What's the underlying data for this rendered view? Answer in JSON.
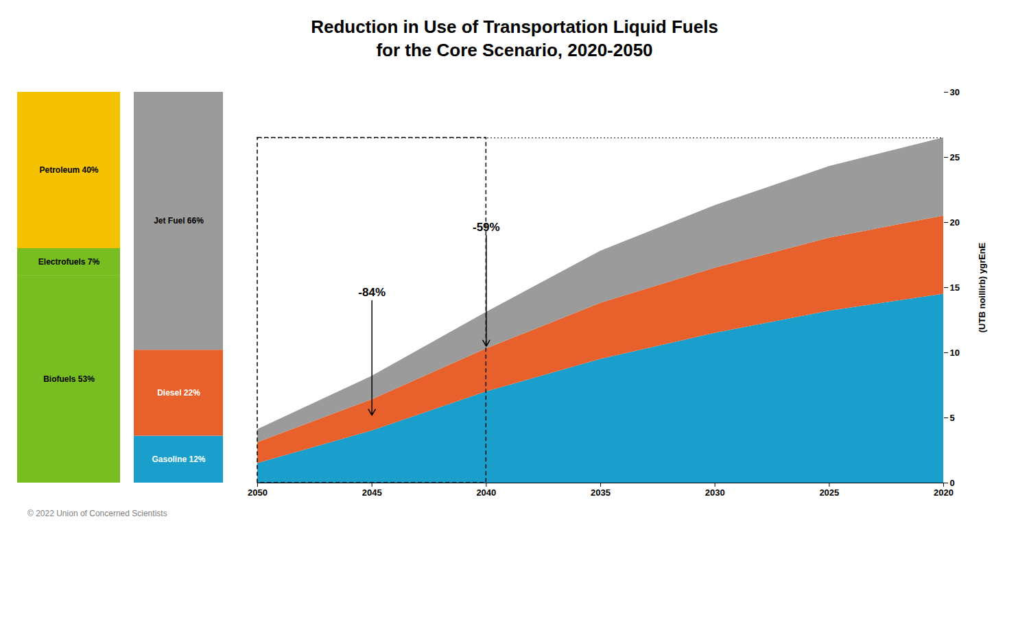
{
  "chart_data": [
    {
      "type": "area",
      "title": "Reduction in Use of Transportation Liquid Fuels",
      "subtitle": "for the Core Scenario, 2020-2050",
      "caption": "© 2022 Union of Concerned Scientists",
      "ylabel": "(UTB noillirb) ygrEnE",
      "x": [
        2020,
        2025,
        2030,
        2035,
        2040,
        2045,
        2050
      ],
      "series": [
        {
          "color": "#1A9FCC",
          "values": [
            14.5,
            13.2,
            11.5,
            9.5,
            7.0,
            4.0,
            1.5
          ]
        },
        {
          "color": "#E8602C",
          "values": [
            6.0,
            5.6,
            5.0,
            4.3,
            3.3,
            2.4,
            1.6
          ]
        },
        {
          "color": "#9B9B9B",
          "values": [
            6.0,
            5.5,
            4.8,
            4.0,
            2.8,
            1.8,
            1.0
          ]
        }
      ],
      "stacked": true,
      "grid": false,
      "xlim": [
        2050,
        2020
      ],
      "xticks": [
        2020,
        2025,
        2030,
        2035,
        2040,
        2045,
        2050
      ],
      "ylim": [
        0,
        30
      ],
      "yticks": [
        0,
        5,
        10,
        15,
        20,
        25,
        30
      ],
      "annotations": [
        {
          "text": "-84%",
          "x": 2045,
          "y": 14.0,
          "arrow_to": [
            2045,
            5.2
          ]
        },
        {
          "text": "-59%",
          "x": 2040,
          "y": 19.0,
          "arrow_to": [
            2040,
            10.5
          ]
        }
      ],
      "rectangle": {
        "x": [
          2040,
          2050
        ],
        "y": [
          0,
          26.5
        ]
      },
      "hline": 26.5
    },
    {
      "type": "bar",
      "stacked": true,
      "data_labels": true,
      "tick_labels": false,
      "ylim": [
        0,
        100
      ],
      "series": [
        {
          "name": "Biofuels",
          "color": "#78BE21",
          "values": [
            53
          ],
          "value_labels": [
            "Biofuels 53%"
          ]
        },
        {
          "name": "Electrofuels",
          "color": "#78BE21",
          "values": [
            7
          ],
          "value_labels": [
            "Electrofuels 7%"
          ]
        },
        {
          "name": "Petroleum",
          "color": "#F5C200",
          "values": [
            40
          ],
          "value_labels": [
            "Petroleum 40%"
          ]
        }
      ]
    },
    {
      "type": "bar",
      "stacked": true,
      "data_labels": true,
      "tick_labels": false,
      "ylim": [
        0,
        100
      ],
      "series": [
        {
          "name": "Gasoline",
          "color": "#1A9FCC",
          "values": [
            12
          ],
          "value_labels": [
            "Gasoline 12%"
          ]
        },
        {
          "name": "Diesel",
          "color": "#E8602C",
          "values": [
            22
          ],
          "value_labels": [
            "Diesel 22%"
          ]
        },
        {
          "name": "Jet Fuel",
          "color": "#9B9B9B",
          "values": [
            66
          ],
          "value_labels": [
            "Jet Fuel 66%"
          ]
        }
      ]
    }
  ]
}
